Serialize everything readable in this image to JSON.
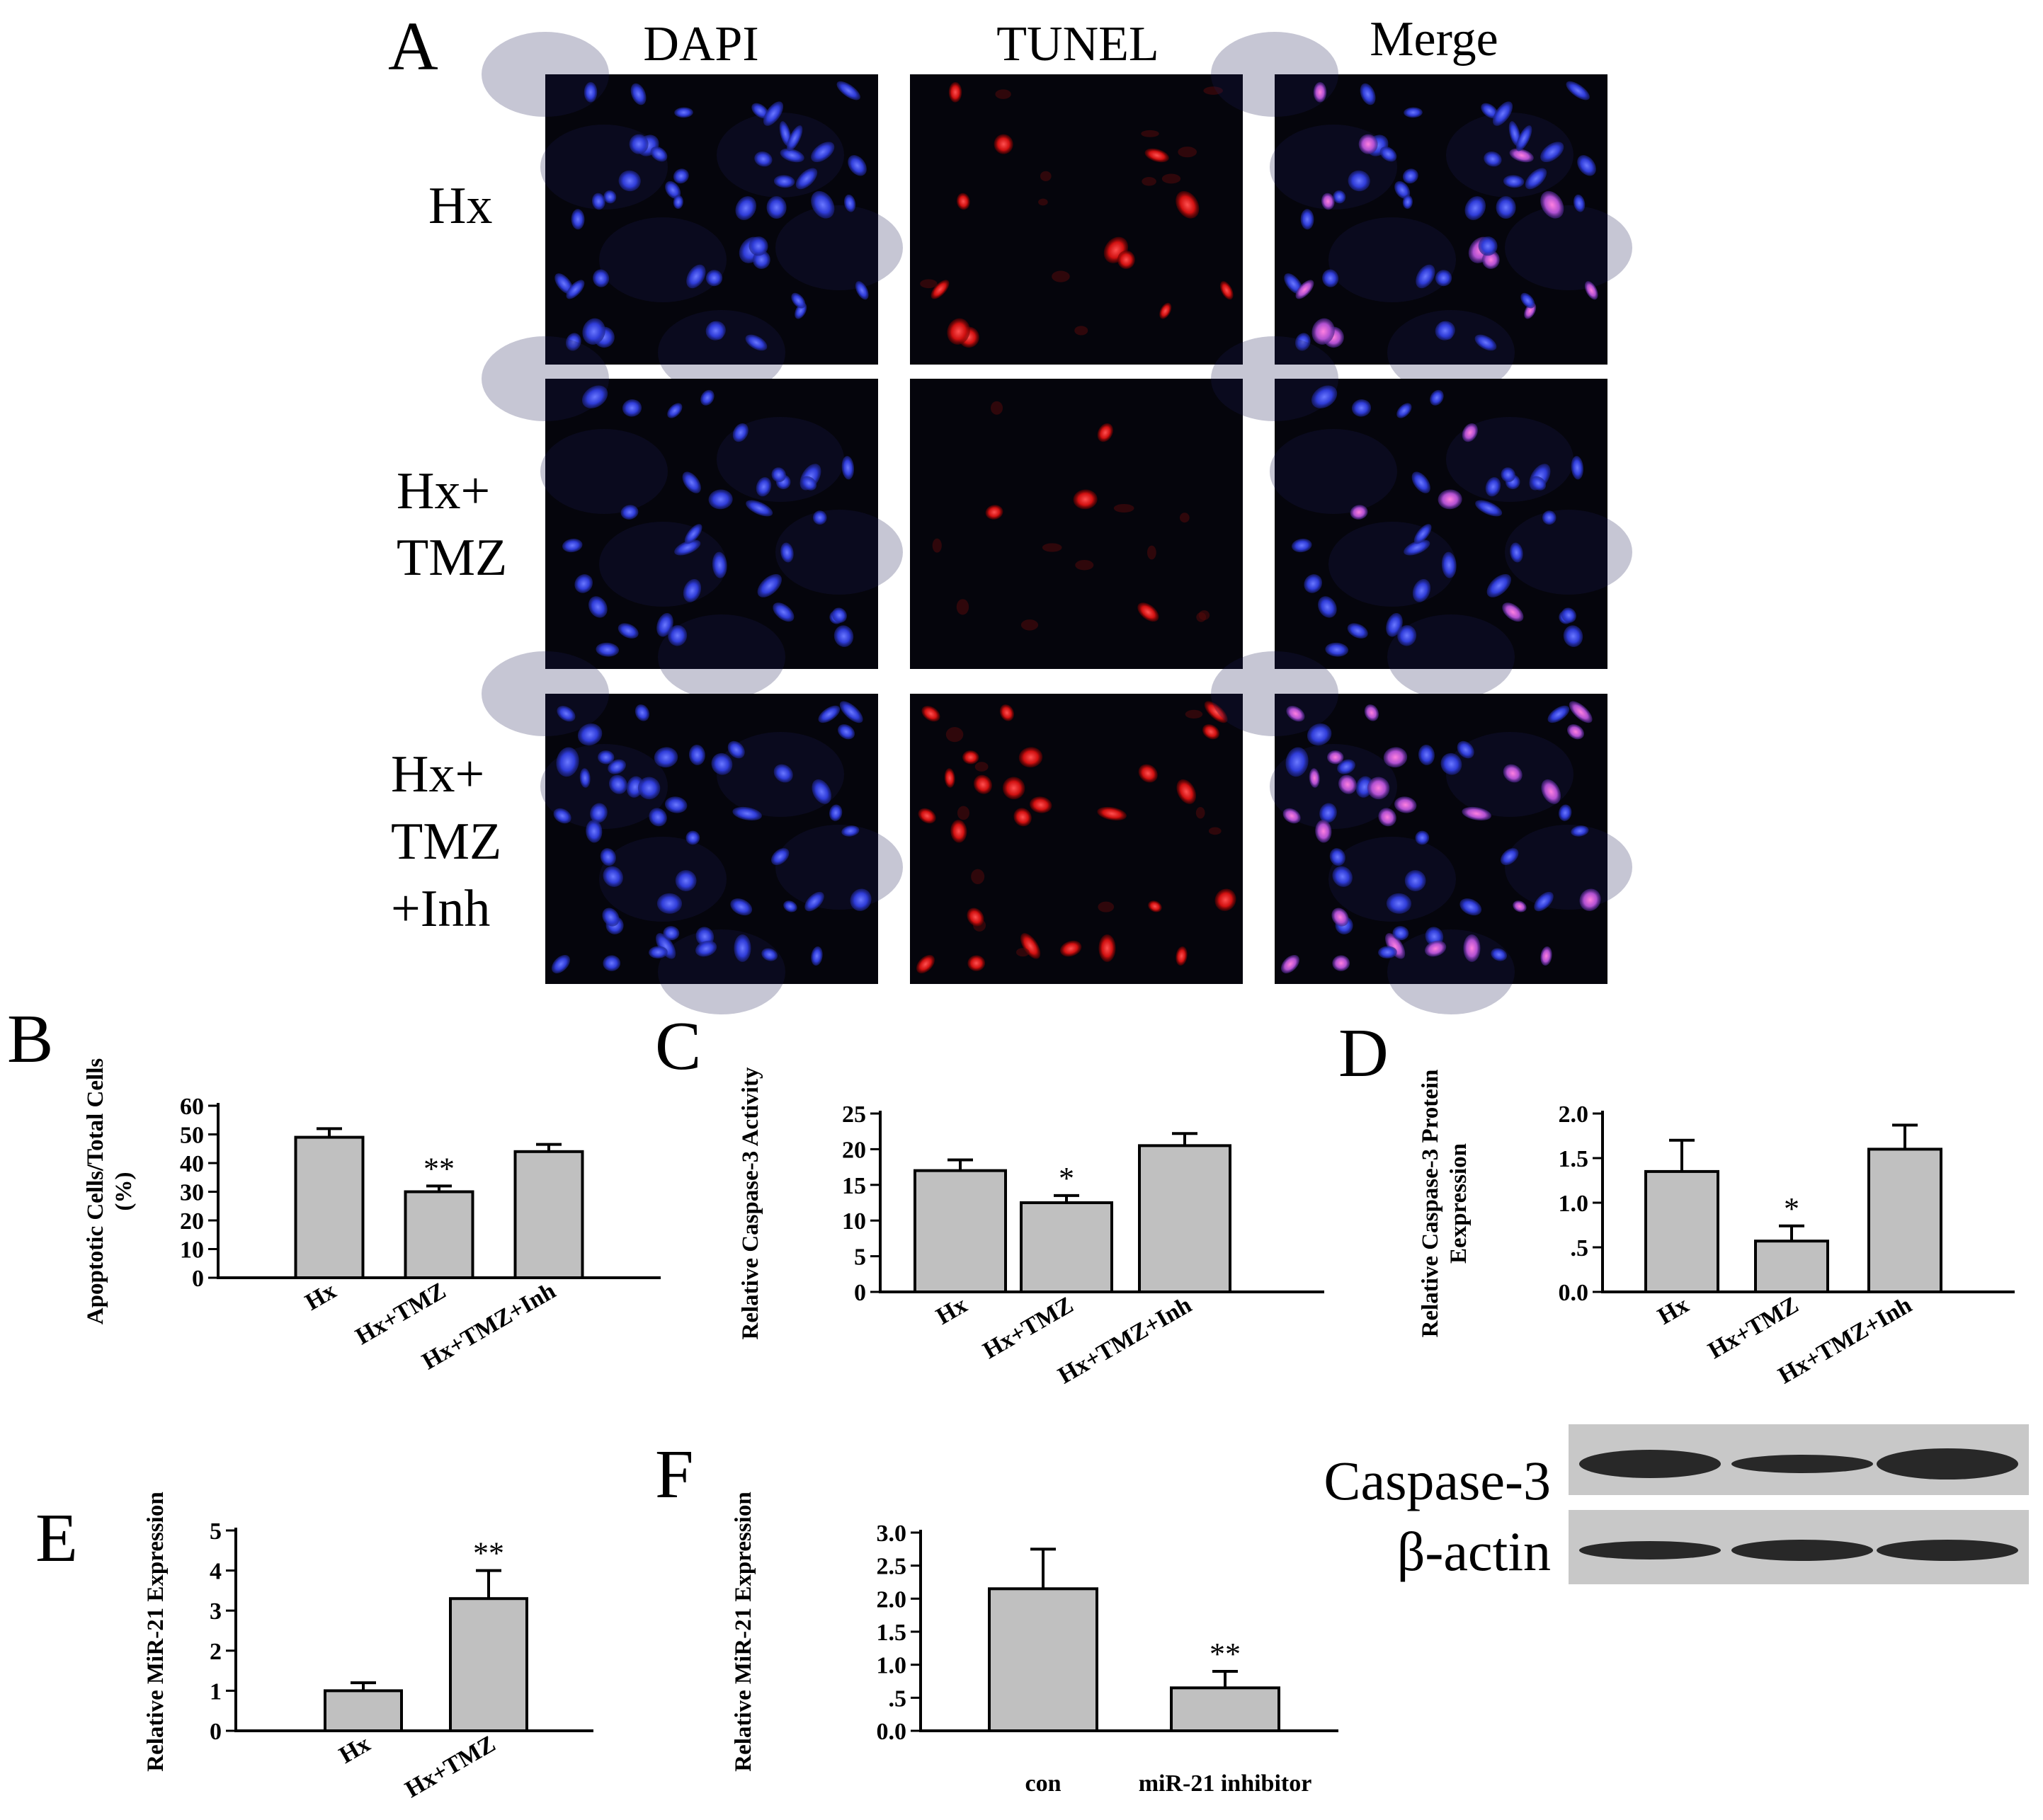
{
  "colors": {
    "bar_fill": "#c0c0c0",
    "bar_stroke": "#000000",
    "dapi": "#2f3cd8",
    "tunel": "#e01818",
    "merge": "#8a4ae0",
    "micrograph_bg": "#05050c"
  },
  "panel_a": {
    "letter": "A",
    "columns": [
      "DAPI",
      "TUNEL",
      "Merge"
    ],
    "rows": [
      {
        "label": [
          "Hx"
        ],
        "dapi_density": 0.8,
        "tunel_density": 0.35
      },
      {
        "label": [
          "Hx+",
          "TMZ"
        ],
        "dapi_density": 0.45,
        "tunel_density": 0.1
      },
      {
        "label": [
          "Hx+",
          "TMZ",
          "+Inh"
        ],
        "dapi_density": 0.9,
        "tunel_density": 0.45
      }
    ]
  },
  "blot": {
    "labels": [
      "Caspase-3",
      "β-actin"
    ]
  },
  "chart_data": [
    {
      "letter": "B",
      "type": "bar",
      "ylabel": [
        "Apoptotic Cells/Total Cells",
        "(%)"
      ],
      "categories": [
        "Hx",
        "Hx+TMZ",
        "Hx+TMZ+Inh"
      ],
      "values": [
        49,
        30,
        44
      ],
      "errors": [
        3,
        2,
        2.5
      ],
      "significance": [
        "",
        "**",
        ""
      ],
      "ylim": [
        0,
        60
      ],
      "yticks": [
        0,
        10,
        20,
        30,
        40,
        50,
        60
      ],
      "yticklabels": [
        "0",
        "10",
        "20",
        "30",
        "40",
        "50",
        "60"
      ],
      "rotate_categories": true
    },
    {
      "letter": "C",
      "type": "bar",
      "ylabel": [
        "Relative Caspase-3 Activity"
      ],
      "categories": [
        "Hx",
        "Hx+TMZ",
        "Hx+TMZ+Inh"
      ],
      "values": [
        17,
        12.5,
        20.5
      ],
      "errors": [
        1.5,
        1,
        1.7
      ],
      "significance": [
        "",
        "*",
        ""
      ],
      "ylim": [
        0,
        25
      ],
      "yticks": [
        0,
        5,
        10,
        15,
        20,
        25
      ],
      "yticklabels": [
        "0",
        "5",
        "10",
        "15",
        "20",
        "25"
      ],
      "rotate_categories": true
    },
    {
      "letter": "D",
      "type": "bar",
      "ylabel": [
        "Relative Caspase-3 Protein",
        "Eexpression"
      ],
      "categories": [
        "Hx",
        "Hx+TMZ",
        "Hx+TMZ+Inh"
      ],
      "values": [
        1.35,
        0.57,
        1.6
      ],
      "errors": [
        0.35,
        0.17,
        0.27
      ],
      "significance": [
        "",
        "*",
        ""
      ],
      "ylim": [
        0,
        2.0
      ],
      "yticks": [
        0,
        0.5,
        1.0,
        1.5,
        2.0
      ],
      "yticklabels": [
        "0.0",
        ".5",
        "1.0",
        "1.5",
        "2.0"
      ],
      "rotate_categories": true
    },
    {
      "letter": "E",
      "type": "bar",
      "ylabel": [
        "Relative MiR-21 Expression"
      ],
      "categories": [
        "Hx",
        "Hx+TMZ"
      ],
      "values": [
        1.0,
        3.3
      ],
      "errors": [
        0.2,
        0.7
      ],
      "significance": [
        "",
        "**"
      ],
      "ylim": [
        0,
        5
      ],
      "yticks": [
        0,
        1,
        2,
        3,
        4,
        5
      ],
      "yticklabels": [
        "0",
        "1",
        "2",
        "3",
        "4",
        "5"
      ],
      "rotate_categories": true
    },
    {
      "letter": "F",
      "type": "bar",
      "ylabel": [
        "Relative MiR-21 Expression"
      ],
      "categories": [
        "con",
        "miR-21 inhibitor"
      ],
      "values": [
        2.15,
        0.65
      ],
      "errors": [
        0.6,
        0.25
      ],
      "significance": [
        "",
        "**"
      ],
      "ylim": [
        0,
        3.0
      ],
      "yticks": [
        0,
        0.5,
        1.0,
        1.5,
        2.0,
        2.5,
        3.0
      ],
      "yticklabels": [
        "0.0",
        ".5",
        "1.0",
        "1.5",
        "2.0",
        "2.5",
        "3.0"
      ],
      "rotate_categories": false
    }
  ]
}
